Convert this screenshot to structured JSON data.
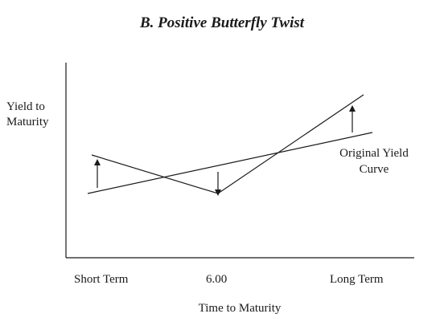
{
  "title": "B. Positive Butterfly Twist",
  "y_axis_label_line1": "Yield to",
  "y_axis_label_line2": "Maturity",
  "x_axis_label": "Time to Maturity",
  "x_ticks": [
    "Short Term",
    "6.00",
    "Long Term"
  ],
  "annotation_line1": "Original Yield",
  "annotation_line2": "Curve",
  "curves": [
    {
      "label": "Original Yield Curve",
      "points": [
        [
          "Short Term",
          "low"
        ],
        [
          "Long Term",
          "mid"
        ]
      ]
    },
    {
      "label": "",
      "points": [
        [
          "Short Term",
          "raised"
        ],
        [
          "6.00",
          "lowered"
        ],
        [
          "Long Term",
          "raised"
        ]
      ]
    }
  ],
  "arrows": [
    {
      "at": "Short Term",
      "direction": "up"
    },
    {
      "at": "6.00",
      "direction": "down"
    },
    {
      "at": "Long Term",
      "direction": "up"
    }
  ]
}
